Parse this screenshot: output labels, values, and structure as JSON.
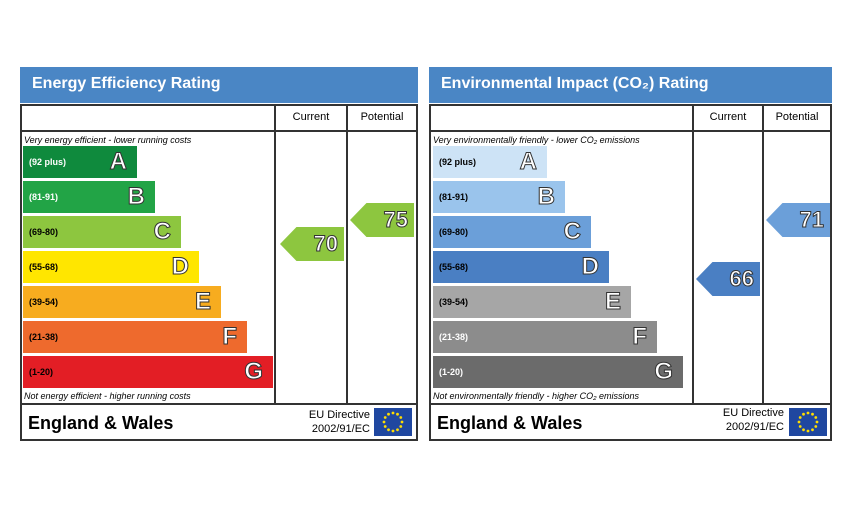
{
  "chart_data": [
    {
      "type": "bar",
      "title": "Energy Efficiency Rating",
      "columns": [
        "Current",
        "Potential"
      ],
      "top_note": "Very energy efficient - lower running costs",
      "bottom_note": "Not energy efficient - higher running costs",
      "bands": [
        {
          "range": "(92 plus)",
          "letter": "A",
          "color": "#0f8a3d",
          "range_color": "#ffffff"
        },
        {
          "range": "(81-91)",
          "letter": "B",
          "color": "#22a446",
          "range_color": "#ffffff"
        },
        {
          "range": "(69-80)",
          "letter": "C",
          "color": "#8dc63f",
          "range_color": "#000000"
        },
        {
          "range": "(55-68)",
          "letter": "D",
          "color": "#ffe600",
          "range_color": "#000000"
        },
        {
          "range": "(39-54)",
          "letter": "E",
          "color": "#f7ac1f",
          "range_color": "#000000"
        },
        {
          "range": "(21-38)",
          "letter": "F",
          "color": "#ee6a2d",
          "range_color": "#000000"
        },
        {
          "range": "(1-20)",
          "letter": "G",
          "color": "#e31e25",
          "range_color": "#000000"
        }
      ],
      "current": {
        "value": "70",
        "band": "C",
        "color": "#8dc63f"
      },
      "potential": {
        "value": "75",
        "band": "C",
        "color": "#8dc63f"
      },
      "region": "England & Wales",
      "directive_line1": "EU Directive",
      "directive_line2": "2002/91/EC"
    },
    {
      "type": "bar",
      "title": "Environmental Impact (CO₂) Rating",
      "columns": [
        "Current",
        "Potential"
      ],
      "top_note": "Very environmentally friendly - lower CO₂ emissions",
      "bottom_note": "Not environmentally friendly - higher CO₂ emissions",
      "bands": [
        {
          "range": "(92 plus)",
          "letter": "A",
          "color": "#cde3f6",
          "range_color": "#000000"
        },
        {
          "range": "(81-91)",
          "letter": "B",
          "color": "#9ac4ec",
          "range_color": "#000000"
        },
        {
          "range": "(69-80)",
          "letter": "C",
          "color": "#6b9fd9",
          "range_color": "#000000"
        },
        {
          "range": "(55-68)",
          "letter": "D",
          "color": "#4a7fc3",
          "range_color": "#000000"
        },
        {
          "range": "(39-54)",
          "letter": "E",
          "color": "#a6a6a6",
          "range_color": "#000000"
        },
        {
          "range": "(21-38)",
          "letter": "F",
          "color": "#8c8c8c",
          "range_color": "#ffffff"
        },
        {
          "range": "(1-20)",
          "letter": "G",
          "color": "#6b6b6b",
          "range_color": "#ffffff"
        }
      ],
      "current": {
        "value": "66",
        "band": "D",
        "color": "#4a7fc3"
      },
      "potential": {
        "value": "71",
        "band": "C",
        "color": "#6b9fd9"
      },
      "region": "England & Wales",
      "directive_line1": "EU Directive",
      "directive_line2": "2002/91/EC"
    }
  ]
}
